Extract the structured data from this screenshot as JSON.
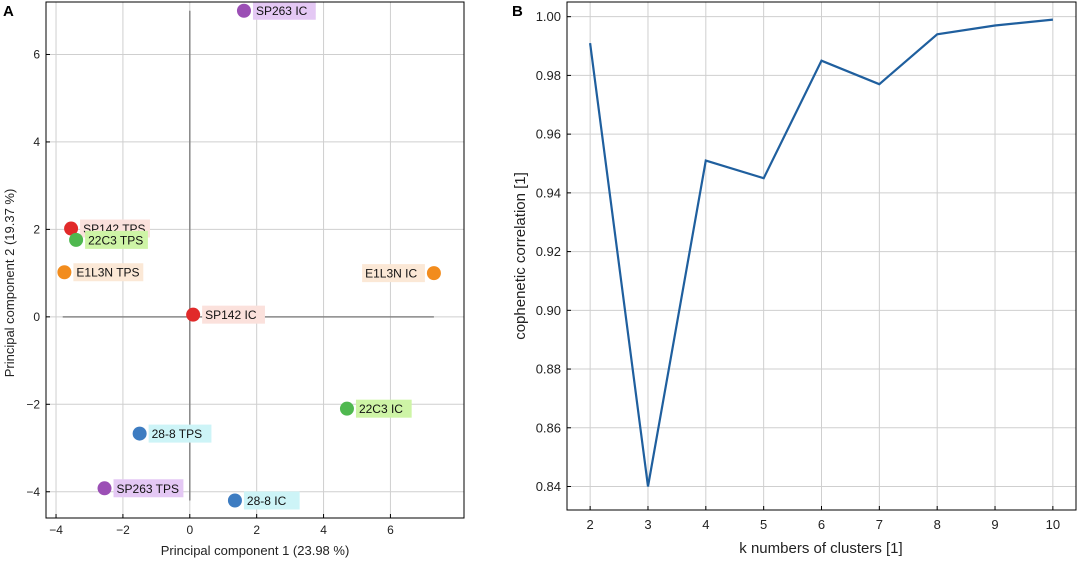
{
  "chart_data": [
    {
      "panel": "A",
      "type": "scatter",
      "xlabel": "Principal component 1 (23.98 %)",
      "ylabel": "Principal component 2 (19.37 %)",
      "xlim": [
        -4.3,
        8.2
      ],
      "ylim": [
        -4.6,
        7.2
      ],
      "xticks": [
        -4,
        -2,
        0,
        2,
        4,
        6
      ],
      "yticks": [
        -4,
        -2,
        0,
        2,
        4,
        6
      ],
      "grid": true,
      "points": [
        {
          "label": "SP263 IC",
          "x": 1.62,
          "y": 7.0,
          "color": "#9b4fb5",
          "bg": "#e4c8f4"
        },
        {
          "label": "SP142 TPS",
          "x": -3.55,
          "y": 2.02,
          "color": "#e12a2a",
          "bg": "#fbe1dc"
        },
        {
          "label": "22C3 TPS",
          "x": -3.4,
          "y": 1.76,
          "color": "#4fb84f",
          "bg": "#cef4a6"
        },
        {
          "label": "E1L3N TPS",
          "x": -3.75,
          "y": 1.02,
          "color": "#f28c1d",
          "bg": "#fbe8d6"
        },
        {
          "label": "E1L3N IC",
          "x": 7.3,
          "y": 1.0,
          "color": "#f28c1d",
          "bg": "#fbe8d6"
        },
        {
          "label": "SP142 IC",
          "x": 0.1,
          "y": 0.05,
          "color": "#e12a2a",
          "bg": "#fbe1dc"
        },
        {
          "label": "22C3 IC",
          "x": 4.7,
          "y": -2.1,
          "color": "#4fb84f",
          "bg": "#cef4a6"
        },
        {
          "label": "28-8 TPS",
          "x": -1.5,
          "y": -2.67,
          "color": "#3d7cc1",
          "bg": "#cdf4f7"
        },
        {
          "label": "SP263 TPS",
          "x": -2.55,
          "y": -3.92,
          "color": "#9b4fb5",
          "bg": "#e4c8f4"
        },
        {
          "label": "28-8 IC",
          "x": 1.35,
          "y": -4.2,
          "color": "#3d7cc1",
          "bg": "#cdf4f7"
        }
      ],
      "axis_lines": {
        "h": [
          -3.8,
          7.3
        ],
        "v": [
          -4.2,
          7.0
        ],
        "color": "#888888"
      }
    },
    {
      "panel": "B",
      "type": "line",
      "xlabel": "k numbers of clusters [1]",
      "ylabel": "cophenetic correlation [1]",
      "xlim": [
        1.6,
        10.4
      ],
      "ylim": [
        0.832,
        1.005
      ],
      "xticks": [
        2,
        3,
        4,
        5,
        6,
        7,
        8,
        9,
        10
      ],
      "yticks": [
        0.84,
        0.86,
        0.88,
        0.9,
        0.92,
        0.94,
        0.96,
        0.98,
        1.0
      ],
      "ytick_labels": [
        "0.84",
        "0.86",
        "0.88",
        "0.90",
        "0.92",
        "0.94",
        "0.96",
        "0.98",
        "1.00"
      ],
      "grid": true,
      "x": [
        2,
        3,
        4,
        5,
        6,
        7,
        8,
        9,
        10
      ],
      "values": [
        0.991,
        0.84,
        0.951,
        0.945,
        0.985,
        0.977,
        0.994,
        0.997,
        0.999
      ],
      "line_color": "#1f5f9e"
    }
  ]
}
